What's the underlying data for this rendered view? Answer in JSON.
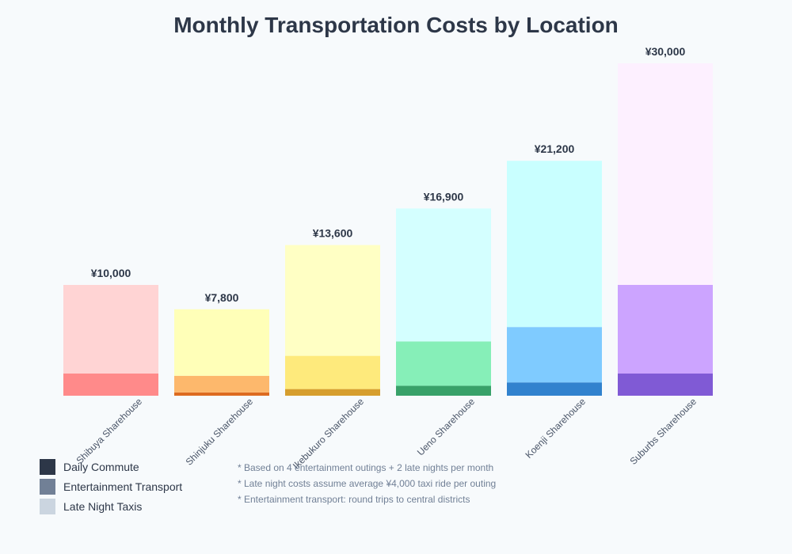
{
  "chart_data": {
    "type": "bar",
    "stacked": true,
    "title": "Monthly Transportation Costs by Location",
    "categories": [
      "Shibuya Sharehouse",
      "Shinjuku Sharehouse",
      "Ikebukuro Sharehouse",
      "Ueno Sharehouse",
      "Koenji Sharehouse",
      "Suburbs Sharehouse"
    ],
    "series": [
      {
        "name": "Daily Commute",
        "values": [
          0,
          300,
          600,
          900,
          1200,
          2000
        ]
      },
      {
        "name": "Entertainment Transport",
        "values": [
          2000,
          1500,
          3000,
          4000,
          5000,
          8000
        ]
      },
      {
        "name": "Late Night Taxis",
        "values": [
          8000,
          6000,
          10000,
          12000,
          15000,
          20000
        ]
      }
    ],
    "total_labels": [
      "¥10,000",
      "¥7,800",
      "¥13,600",
      "¥16,900",
      "¥21,200",
      "¥30,000"
    ],
    "ylim": [
      0,
      30000
    ],
    "grid": false,
    "legend_placement": "bottom-left",
    "legend_colors": [
      "#2d3748",
      "#718096",
      "#cbd5e0"
    ],
    "bar_colors": [
      [
        "#ff8a8a",
        "#ff8a8a",
        "#ffd4d4"
      ],
      [
        "#dd6b20",
        "#fdb86c",
        "#ffffb8"
      ],
      [
        "#d69e2e",
        "#feea7c",
        "#ffffc4"
      ],
      [
        "#38a169",
        "#86efb8",
        "#d4ffff"
      ],
      [
        "#3182ce",
        "#7fcbff",
        "#c9ffff"
      ],
      [
        "#805ad5",
        "#cca4ff",
        "#fdf0ff"
      ]
    ],
    "notes": [
      "* Based on 4 entertainment outings + 2 late nights per month",
      "* Late night costs assume average ¥4,000 taxi ride per outing",
      "* Entertainment transport: round trips to central districts"
    ]
  }
}
